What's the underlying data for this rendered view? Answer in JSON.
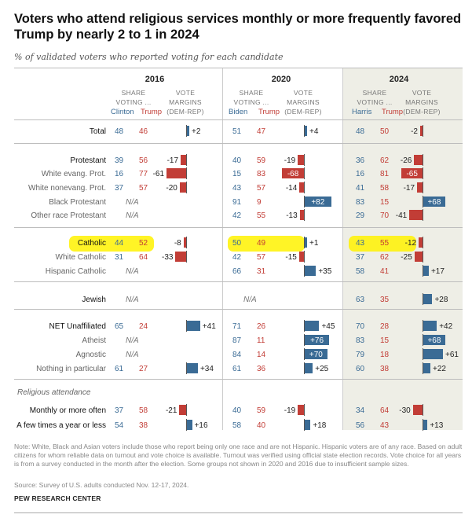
{
  "title": "Voters who attend religious services monthly or more frequently favored Trump by nearly 2 to 1 in 2024",
  "subtitle": "% of validated voters who reported voting for each candidate",
  "header": {
    "share_line1": "SHARE",
    "share_line2": "VOTING ...",
    "vote_line1": "VOTE",
    "vote_line2": "MARGINS",
    "vote_line3": "(DEM-REP)"
  },
  "years": [
    "2016",
    "2020",
    "2024"
  ],
  "candidates": [
    {
      "dem": "Clinton",
      "rep": "Trump"
    },
    {
      "dem": "Biden",
      "rep": "Trump"
    },
    {
      "dem": "Harris",
      "rep": "Trump"
    }
  ],
  "attendance_section_label": "Religious attendance",
  "na_text": "N/A",
  "chart_data": {
    "type": "table",
    "title": "Voters who attend religious services monthly or more frequently favored Trump by nearly 2 to 1 in 2024",
    "unit": "% of validated voters",
    "margin_definition": "Vote margins (DEM-REP)",
    "highlighted_row": "Catholic",
    "colors": {
      "dem": "#3a6b95",
      "rep": "#c23d36",
      "highlight": "#fff200"
    },
    "rows": [
      {
        "label": "Total",
        "style": "lead",
        "y2016": {
          "dem": "48",
          "rep": "46",
          "margin": 2,
          "margin_label": "+2"
        },
        "y2020": {
          "dem": "51",
          "rep": "47",
          "margin": 4,
          "margin_label": "+4"
        },
        "y2024": {
          "dem": "48",
          "rep": "50",
          "margin": -2,
          "margin_label": "-2"
        }
      },
      {
        "label": "Protestant",
        "style": "lead",
        "y2016": {
          "dem": "39",
          "rep": "56",
          "margin": -17,
          "margin_label": "-17"
        },
        "y2020": {
          "dem": "40",
          "rep": "59",
          "margin": -19,
          "margin_label": "-19"
        },
        "y2024": {
          "dem": "36",
          "rep": "62",
          "margin": -26,
          "margin_label": "-26"
        }
      },
      {
        "label": "White evang. Prot.",
        "style": "sub",
        "y2016": {
          "dem": "16",
          "rep": "77",
          "margin": -61,
          "margin_label": "-61"
        },
        "y2020": {
          "dem": "15",
          "rep": "83",
          "margin": -68,
          "margin_label": "-68"
        },
        "y2024": {
          "dem": "16",
          "rep": "81",
          "margin": -65,
          "margin_label": "-65"
        }
      },
      {
        "label": "White nonevang. Prot.",
        "style": "sub",
        "y2016": {
          "dem": "37",
          "rep": "57",
          "margin": -20,
          "margin_label": "-20"
        },
        "y2020": {
          "dem": "43",
          "rep": "57",
          "margin": -14,
          "margin_label": "-14"
        },
        "y2024": {
          "dem": "41",
          "rep": "58",
          "margin": -17,
          "margin_label": "-17"
        }
      },
      {
        "label": "Black Protestant",
        "style": "sub",
        "y2016": null,
        "y2020": {
          "dem": "91",
          "rep": "9",
          "margin": 82,
          "margin_label": "+82"
        },
        "y2024": {
          "dem": "83",
          "rep": "15",
          "margin": 68,
          "margin_label": "+68"
        }
      },
      {
        "label": "Other race Protestant",
        "style": "sub",
        "y2016": null,
        "y2020": {
          "dem": "42",
          "rep": "55",
          "margin": -13,
          "margin_label": "-13"
        },
        "y2024": {
          "dem": "29",
          "rep": "70",
          "margin": -41,
          "margin_label": "-41"
        }
      },
      {
        "label": "Catholic",
        "style": "lead",
        "y2016": {
          "dem": "44",
          "rep": "52",
          "margin": -8,
          "margin_label": "-8"
        },
        "y2020": {
          "dem": "50",
          "rep": "49",
          "margin": 1,
          "margin_label": "+1"
        },
        "y2024": {
          "dem": "43",
          "rep": "55",
          "margin": -12,
          "margin_label": "-12"
        }
      },
      {
        "label": "White Catholic",
        "style": "sub",
        "y2016": {
          "dem": "31",
          "rep": "64",
          "margin": -33,
          "margin_label": "-33"
        },
        "y2020": {
          "dem": "42",
          "rep": "57",
          "margin": -15,
          "margin_label": "-15"
        },
        "y2024": {
          "dem": "37",
          "rep": "62",
          "margin": -25,
          "margin_label": "-25"
        }
      },
      {
        "label": "Hispanic Catholic",
        "style": "sub",
        "y2016": null,
        "y2020": {
          "dem": "66",
          "rep": "31",
          "margin": 35,
          "margin_label": "+35"
        },
        "y2024": {
          "dem": "58",
          "rep": "41",
          "margin": 17,
          "margin_label": "+17"
        }
      },
      {
        "label": "Jewish",
        "style": "lead",
        "y2016": null,
        "y2020": null,
        "y2024": {
          "dem": "63",
          "rep": "35",
          "margin": 28,
          "margin_label": "+28"
        }
      },
      {
        "label": "NET Unaffiliated",
        "style": "lead",
        "y2016": {
          "dem": "65",
          "rep": "24",
          "margin": 41,
          "margin_label": "+41"
        },
        "y2020": {
          "dem": "71",
          "rep": "26",
          "margin": 45,
          "margin_label": "+45"
        },
        "y2024": {
          "dem": "70",
          "rep": "28",
          "margin": 42,
          "margin_label": "+42"
        }
      },
      {
        "label": "Atheist",
        "style": "sub",
        "y2016": null,
        "y2020": {
          "dem": "87",
          "rep": "11",
          "margin": 76,
          "margin_label": "+76"
        },
        "y2024": {
          "dem": "83",
          "rep": "15",
          "margin": 68,
          "margin_label": "+68"
        }
      },
      {
        "label": "Agnostic",
        "style": "sub",
        "y2016": null,
        "y2020": {
          "dem": "84",
          "rep": "14",
          "margin": 70,
          "margin_label": "+70"
        },
        "y2024": {
          "dem": "79",
          "rep": "18",
          "margin": 61,
          "margin_label": "+61"
        }
      },
      {
        "label": "Nothing in particular",
        "style": "sub",
        "y2016": {
          "dem": "61",
          "rep": "27",
          "margin": 34,
          "margin_label": "+34"
        },
        "y2020": {
          "dem": "61",
          "rep": "36",
          "margin": 25,
          "margin_label": "+25"
        },
        "y2024": {
          "dem": "60",
          "rep": "38",
          "margin": 22,
          "margin_label": "+22"
        }
      },
      {
        "label": "Monthly or more often",
        "style": "lead",
        "y2016": {
          "dem": "37",
          "rep": "58",
          "margin": -21,
          "margin_label": "-21"
        },
        "y2020": {
          "dem": "40",
          "rep": "59",
          "margin": -19,
          "margin_label": "-19"
        },
        "y2024": {
          "dem": "34",
          "rep": "64",
          "margin": -30,
          "margin_label": "-30"
        }
      },
      {
        "label": "A few times a year or less",
        "style": "lead",
        "y2016": {
          "dem": "54",
          "rep": "38",
          "margin": 16,
          "margin_label": "+16"
        },
        "y2020": {
          "dem": "58",
          "rep": "40",
          "margin": 18,
          "margin_label": "+18"
        },
        "y2024": {
          "dem": "56",
          "rep": "43",
          "margin": 13,
          "margin_label": "+13"
        }
      }
    ]
  },
  "footer": {
    "note": "Note: White, Black and Asian voters include those who report being only one race and are not Hispanic. Hispanic voters are of any race. Based on adult citizens for whom reliable data on turnout and vote choice is available. Turnout was verified using official state election records. Vote choice for all years is from a survey conducted in the month after the election. Some groups not shown in 2020 and 2016 due to insufficient sample sizes.",
    "source": "Source: Survey of U.S. adults conducted Nov. 12-17, 2024.",
    "org": "PEW RESEARCH CENTER"
  }
}
